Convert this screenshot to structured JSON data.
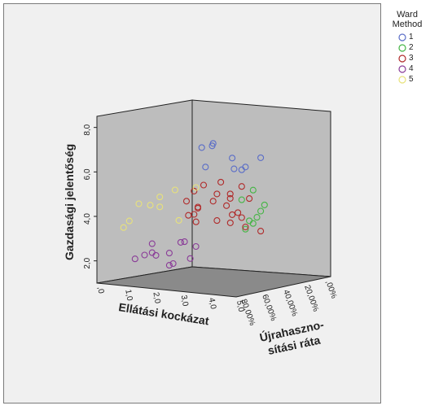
{
  "chart_data": {
    "type": "scatter",
    "xlabel": "Ellátási kockázat",
    "ylabel": "Gazdasági jelentőség",
    "zlabel": [
      "Újrahaszno-",
      "sítási ráta"
    ],
    "x_ticks": [
      ",0",
      "1,0",
      "2,0",
      "3,0",
      "4,0",
      "5,0"
    ],
    "y_ticks": [
      "2,0",
      "4,0",
      "6,0",
      "8,0"
    ],
    "z_ticks": [
      "80,00%",
      "60,00%",
      "40,00%",
      "20,00%",
      ",00%"
    ],
    "legend": {
      "title": [
        "Ward",
        "Method"
      ],
      "placement": "right",
      "entries": [
        {
          "label": "1",
          "color": "#5b6ec7"
        },
        {
          "label": "2",
          "color": "#45b545"
        },
        {
          "label": "3",
          "color": "#b02a2a"
        },
        {
          "label": "4",
          "color": "#8a3c98"
        },
        {
          "label": "5",
          "color": "#e8e27a"
        }
      ]
    },
    "clusters": [
      {
        "name": "1",
        "color": "#5b6ec7",
        "points": [
          [
            4.1,
            6.9,
            0.5
          ],
          [
            4.05,
            6.8,
            0.5
          ],
          [
            3.9,
            6.7,
            0.6
          ],
          [
            4.3,
            6.3,
            0.3
          ],
          [
            4.6,
            5.9,
            0.2
          ],
          [
            4.8,
            5.7,
            0.3
          ],
          [
            5.0,
            6.3,
            0.1
          ],
          [
            4.4,
            5.8,
            0.3
          ],
          [
            3.7,
            5.9,
            0.5
          ]
        ]
      },
      {
        "name": "2",
        "color": "#45b545",
        "points": [
          [
            5.0,
            4.2,
            0.05
          ],
          [
            5.0,
            3.9,
            0.1
          ],
          [
            5.0,
            3.6,
            0.15
          ],
          [
            5.0,
            3.3,
            0.2
          ],
          [
            5.0,
            3.4,
            0.25
          ],
          [
            5.0,
            3.0,
            0.3
          ],
          [
            5.0,
            4.8,
            0.2
          ],
          [
            5.0,
            4.3,
            0.35
          ]
        ]
      },
      {
        "name": "3",
        "color": "#b02a2a",
        "points": [
          [
            4.0,
            5.0,
            0.6
          ],
          [
            3.9,
            4.7,
            0.7
          ],
          [
            4.6,
            4.4,
            0.4
          ],
          [
            4.3,
            4.6,
            0.5
          ],
          [
            4.5,
            4.2,
            0.6
          ],
          [
            4.8,
            4.0,
            0.5
          ],
          [
            5.0,
            3.7,
            0.4
          ],
          [
            4.9,
            3.6,
            0.45
          ],
          [
            5.0,
            3.1,
            0.3
          ],
          [
            5.0,
            3.5,
            0.35
          ],
          [
            5.0,
            3.2,
            0.5
          ],
          [
            4.7,
            3.3,
            0.6
          ],
          [
            5.0,
            4.4,
            0.25
          ],
          [
            5.0,
            4.9,
            0.35
          ],
          [
            4.9,
            5.0,
            0.6
          ],
          [
            4.3,
            3.9,
            0.75
          ],
          [
            3.9,
            4.2,
            0.8
          ],
          [
            4.5,
            3.8,
            0.8
          ],
          [
            4.2,
            3.5,
            0.85
          ],
          [
            4.4,
            3.2,
            0.8
          ],
          [
            4.1,
            3.6,
            0.75
          ],
          [
            5.0,
            3.0,
            0.1
          ],
          [
            4.6,
            4.6,
            0.4
          ]
        ]
      },
      {
        "name": "4",
        "color": "#8a3c98",
        "points": [
          [
            2.8,
            2.5,
            0.4
          ],
          [
            2.4,
            2.7,
            0.5
          ],
          [
            1.7,
            2.1,
            0.8
          ],
          [
            1.9,
            2.2,
            0.75
          ],
          [
            1.6,
            1.9,
            0.9
          ],
          [
            2.3,
            2.5,
            0.85
          ],
          [
            3.0,
            2.6,
            0.6
          ],
          [
            2.6,
            2.1,
            0.7
          ],
          [
            2.8,
            1.6,
            0.7
          ],
          [
            2.8,
            1.5,
            0.75
          ],
          [
            2.3,
            2.0,
            0.8
          ],
          [
            2.9,
            1.9,
            0.5
          ]
        ]
      },
      {
        "name": "5",
        "color": "#e8e27a",
        "points": [
          [
            0.6,
            3.5,
            0.8
          ],
          [
            1.2,
            4.5,
            0.75
          ],
          [
            1.1,
            3.7,
            0.85
          ],
          [
            2.1,
            4.7,
            0.7
          ],
          [
            2.3,
            4.2,
            0.75
          ],
          [
            2.5,
            5.0,
            0.6
          ],
          [
            3.0,
            5.1,
            0.45
          ],
          [
            2.0,
            4.3,
            0.8
          ],
          [
            2.7,
            3.6,
            0.6
          ]
        ]
      }
    ]
  }
}
